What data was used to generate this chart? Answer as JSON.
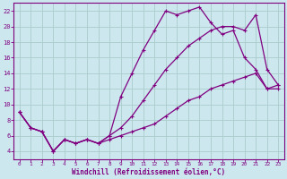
{
  "xlabel": "Windchill (Refroidissement éolien,°C)",
  "bg_color": "#cce8ee",
  "grid_color": "#aacccc",
  "line_color": "#800080",
  "xlim": [
    -0.5,
    23.5
  ],
  "ylim": [
    3.0,
    23.0
  ],
  "xticks": [
    0,
    1,
    2,
    3,
    4,
    5,
    6,
    7,
    8,
    9,
    10,
    11,
    12,
    13,
    14,
    15,
    16,
    17,
    18,
    19,
    20,
    21,
    22,
    23
  ],
  "yticks": [
    4,
    6,
    8,
    10,
    12,
    14,
    16,
    18,
    20,
    22
  ],
  "curve1_x": [
    0,
    1,
    2,
    3,
    4,
    5,
    6,
    7,
    8,
    9,
    10,
    11,
    12,
    13,
    14,
    15,
    16,
    17,
    18,
    19,
    20,
    21,
    22,
    23
  ],
  "curve1_y": [
    9.0,
    7.0,
    6.5,
    4.0,
    5.5,
    5.0,
    5.5,
    5.0,
    6.0,
    11.0,
    14.0,
    17.0,
    19.5,
    22.0,
    21.5,
    22.0,
    22.5,
    20.5,
    19.0,
    19.5,
    16.0,
    14.5,
    12.0,
    12.0
  ],
  "curve2_x": [
    0,
    1,
    2,
    3,
    4,
    5,
    6,
    7,
    8,
    9,
    10,
    11,
    12,
    13,
    14,
    15,
    16,
    17,
    18,
    19,
    20,
    21,
    22,
    23
  ],
  "curve2_y": [
    9.0,
    7.0,
    6.5,
    4.0,
    5.5,
    5.0,
    5.5,
    5.0,
    6.0,
    7.0,
    8.5,
    10.5,
    12.5,
    14.5,
    16.0,
    17.5,
    18.5,
    19.5,
    20.0,
    20.0,
    19.5,
    21.5,
    14.5,
    12.5
  ],
  "curve3_x": [
    0,
    1,
    2,
    3,
    4,
    5,
    6,
    7,
    8,
    9,
    10,
    11,
    12,
    13,
    14,
    15,
    16,
    17,
    18,
    19,
    20,
    21,
    22,
    23
  ],
  "curve3_y": [
    9.0,
    7.0,
    6.5,
    4.0,
    5.5,
    5.0,
    5.5,
    5.0,
    5.5,
    6.0,
    6.5,
    7.0,
    7.5,
    8.5,
    9.5,
    10.5,
    11.0,
    12.0,
    12.5,
    13.0,
    13.5,
    14.0,
    12.0,
    12.5
  ]
}
